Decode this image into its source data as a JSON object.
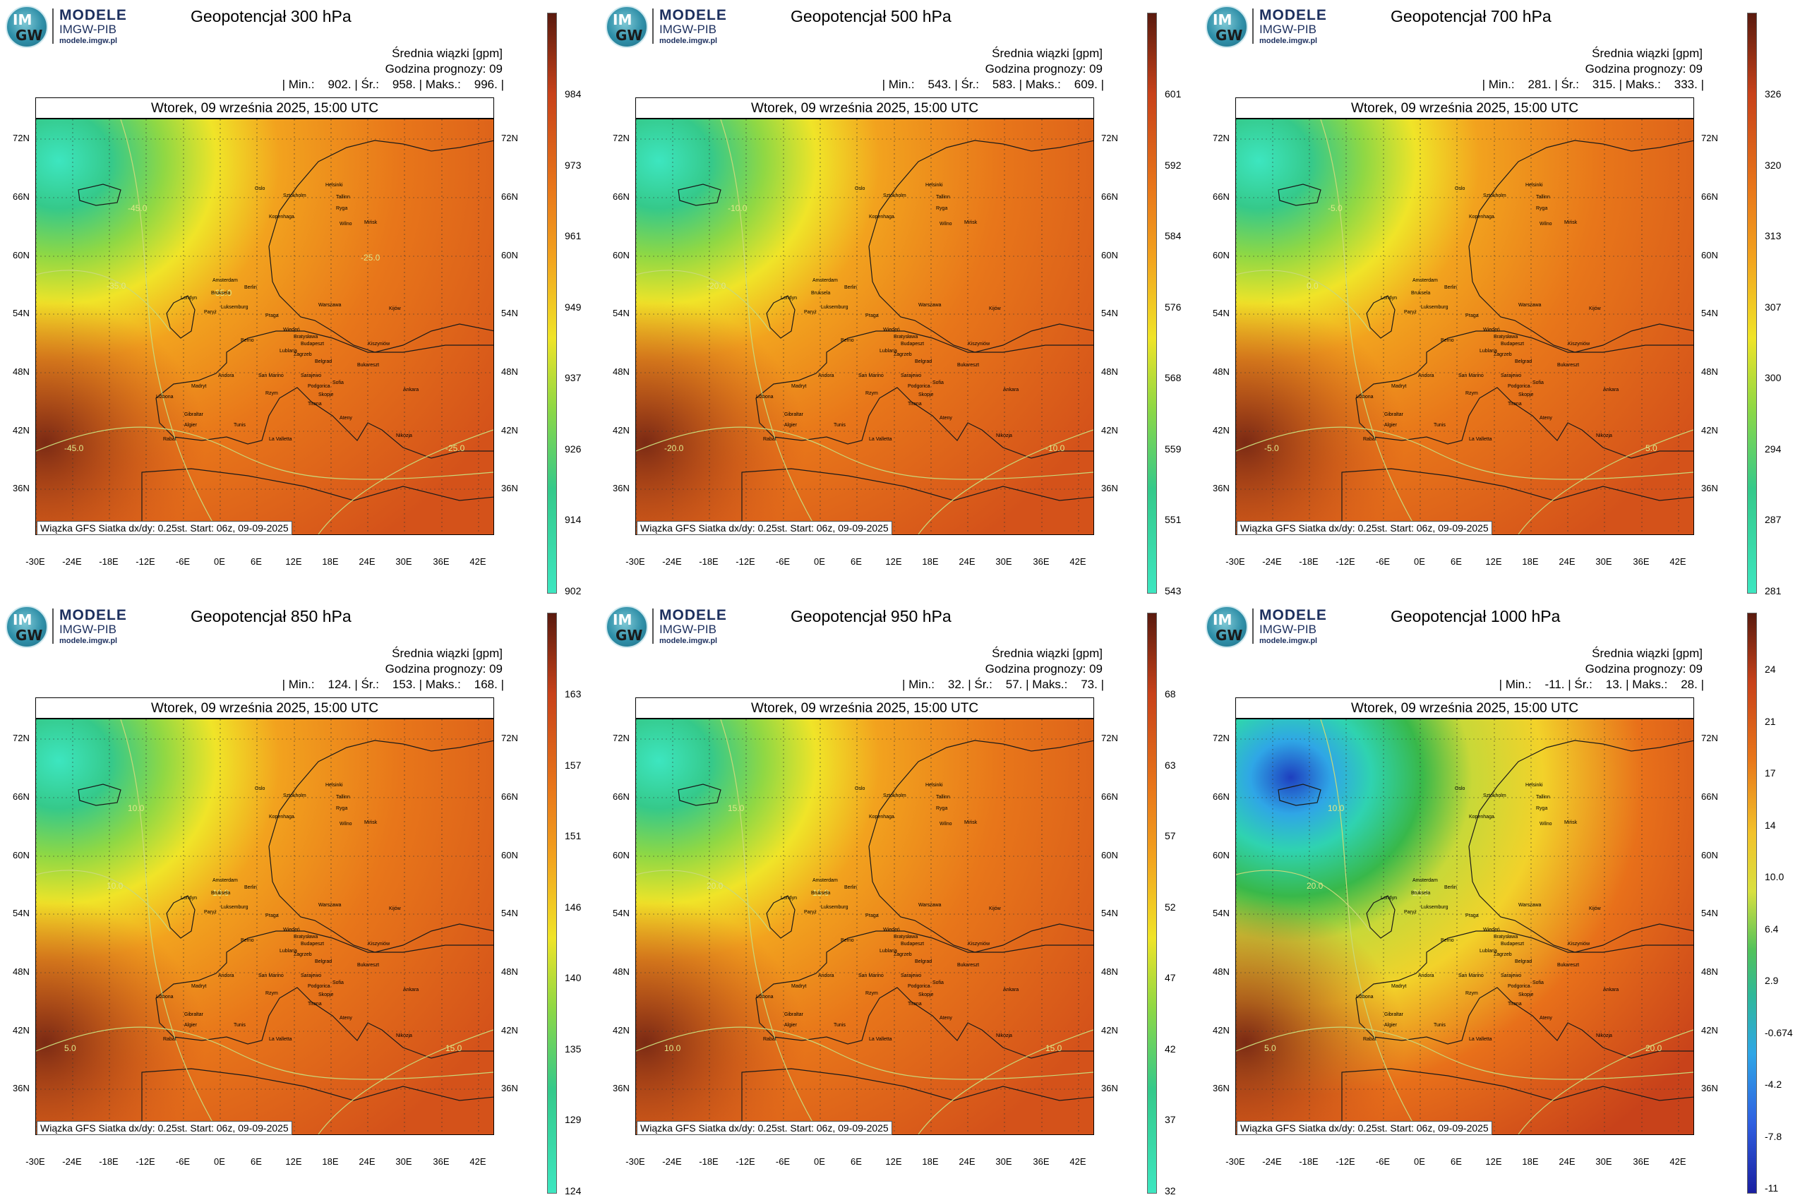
{
  "logo": {
    "line1": "MODELE",
    "line2": "IMGW-PIB",
    "line3": "modele.imgw.pl",
    "badge_top": "IM",
    "badge_bottom": "GW"
  },
  "common": {
    "subtitle": "Średnia wiązki [gpm]",
    "forecast_hour": "Godzina prognozy: 09",
    "date": "Wtorek, 09 września 2025, 15:00 UTC",
    "footer": "Wiązka GFS Siatka dx/dy: 0.25st. Start: 06z, 09-09-2025",
    "lat_labels": [
      "72N",
      "66N",
      "60N",
      "54N",
      "48N",
      "42N",
      "36N"
    ],
    "lon_labels": [
      "-30E",
      "-24E",
      "-18E",
      "-12E",
      "-6E",
      "0E",
      "6E",
      "12E",
      "18E",
      "24E",
      "30E",
      "36E",
      "42E"
    ],
    "cities": [
      "Oslo",
      "Sztokholm",
      "Helsinki",
      "Tallinn",
      "Ryga",
      "Kopenhaga",
      "Wilno",
      "Mińsk",
      "Londyn",
      "Amsterdam",
      "Bruksela",
      "Berlin",
      "Luksemburg",
      "Paryż",
      "Warszawa",
      "Praga",
      "Kijów",
      "Wiedeń",
      "Bratysława",
      "Budapeszt",
      "Kiszyniów",
      "Berno",
      "Lublana",
      "Zagrzeb",
      "Belgrad",
      "Bukareszt",
      "Andora",
      "San Marino",
      "Sarajewo",
      "Podgorica",
      "Sofia",
      "Madryt",
      "Rzym",
      "Tirana",
      "Skopje",
      "Ankara",
      "Lizbona",
      "Gibraltar",
      "Algier",
      "Tunis",
      "La Valletta",
      "Ateny",
      "Rabat",
      "Nikozja"
    ]
  },
  "panels": [
    {
      "title": "Geopotencjał 300 hPa",
      "stats": "| Min.:    902. | Śr.:    958. | Maks.:    996. |",
      "colorbar": [
        "984",
        "973",
        "961",
        "949",
        "937",
        "926",
        "914",
        "902"
      ],
      "contours": [
        "-45.0",
        "-45.0",
        "-35.0",
        "-25.0",
        "-35.0",
        "-25.0"
      ]
    },
    {
      "title": "Geopotencjał 500 hPa",
      "stats": "| Min.:    543. | Śr.:    583. | Maks.:    609. |",
      "colorbar": [
        "601",
        "592",
        "584",
        "576",
        "568",
        "559",
        "551",
        "543"
      ],
      "contours": [
        "-20.0",
        "-10.0",
        "-20.0",
        "-10.0"
      ]
    },
    {
      "title": "Geopotencjał 700 hPa",
      "stats": "| Min.:    281. | Śr.:    315. | Maks.:    333. |",
      "colorbar": [
        "326",
        "320",
        "313",
        "307",
        "300",
        "294",
        "287",
        "281"
      ],
      "contours": [
        "-5.0",
        "-5.0",
        "0.0",
        "5.0"
      ]
    },
    {
      "title": "Geopotencjał 850 hPa",
      "stats": "| Min.:    124. | Śr.:    153. | Maks.:    168. |",
      "colorbar": [
        "163",
        "157",
        "151",
        "146",
        "140",
        "135",
        "129",
        "124"
      ],
      "contours": [
        "5.0",
        "10.0",
        "10.0",
        "15.0",
        "10.0"
      ]
    },
    {
      "title": "Geopotencjał 950 hPa",
      "stats": "| Min.:    32. | Śr.:    57. | Maks.:    73. |",
      "colorbar": [
        "68",
        "63",
        "57",
        "52",
        "47",
        "42",
        "37",
        "32"
      ],
      "contours": [
        "10.0",
        "15.0",
        "20.0",
        "15.0",
        "15.0"
      ]
    },
    {
      "title": "Geopotencjał 1000 hPa",
      "stats": "| Min.:    -11. | Śr.:    13. | Maks.:    28. |",
      "colorbar": [
        "24",
        "21",
        "17",
        "14",
        "10.0",
        "6.4",
        "2.9",
        "-0.674",
        "-4.2",
        "-7.8",
        "-11"
      ],
      "contours": [
        "5.0",
        "10.0",
        "20.0",
        "20.0",
        "20.0"
      ]
    }
  ]
}
